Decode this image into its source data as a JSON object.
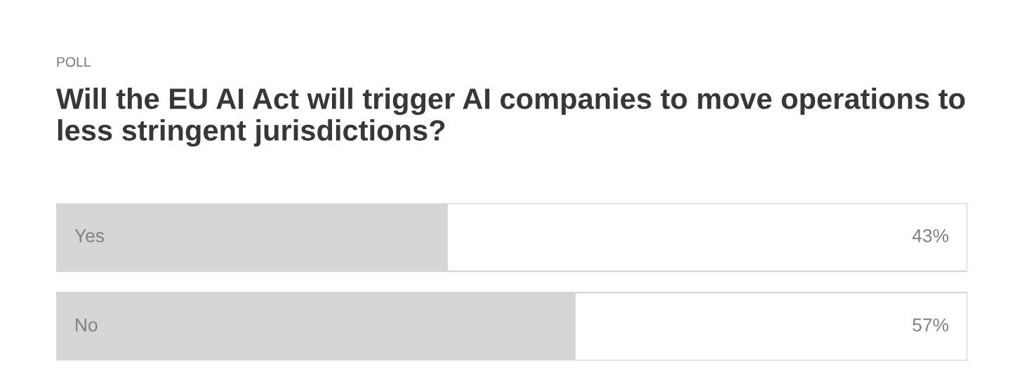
{
  "chart_data": {
    "type": "bar",
    "orientation": "horizontal",
    "subtitle": "POLL",
    "title": "Will the EU AI Act will trigger AI companies to move operations to less stringent jurisdictions?",
    "categories": [
      "Yes",
      "No"
    ],
    "values": [
      43,
      57
    ],
    "value_labels": [
      "43%",
      "57%"
    ],
    "color": "#d6d6d6",
    "xlim": [
      0,
      100
    ]
  }
}
